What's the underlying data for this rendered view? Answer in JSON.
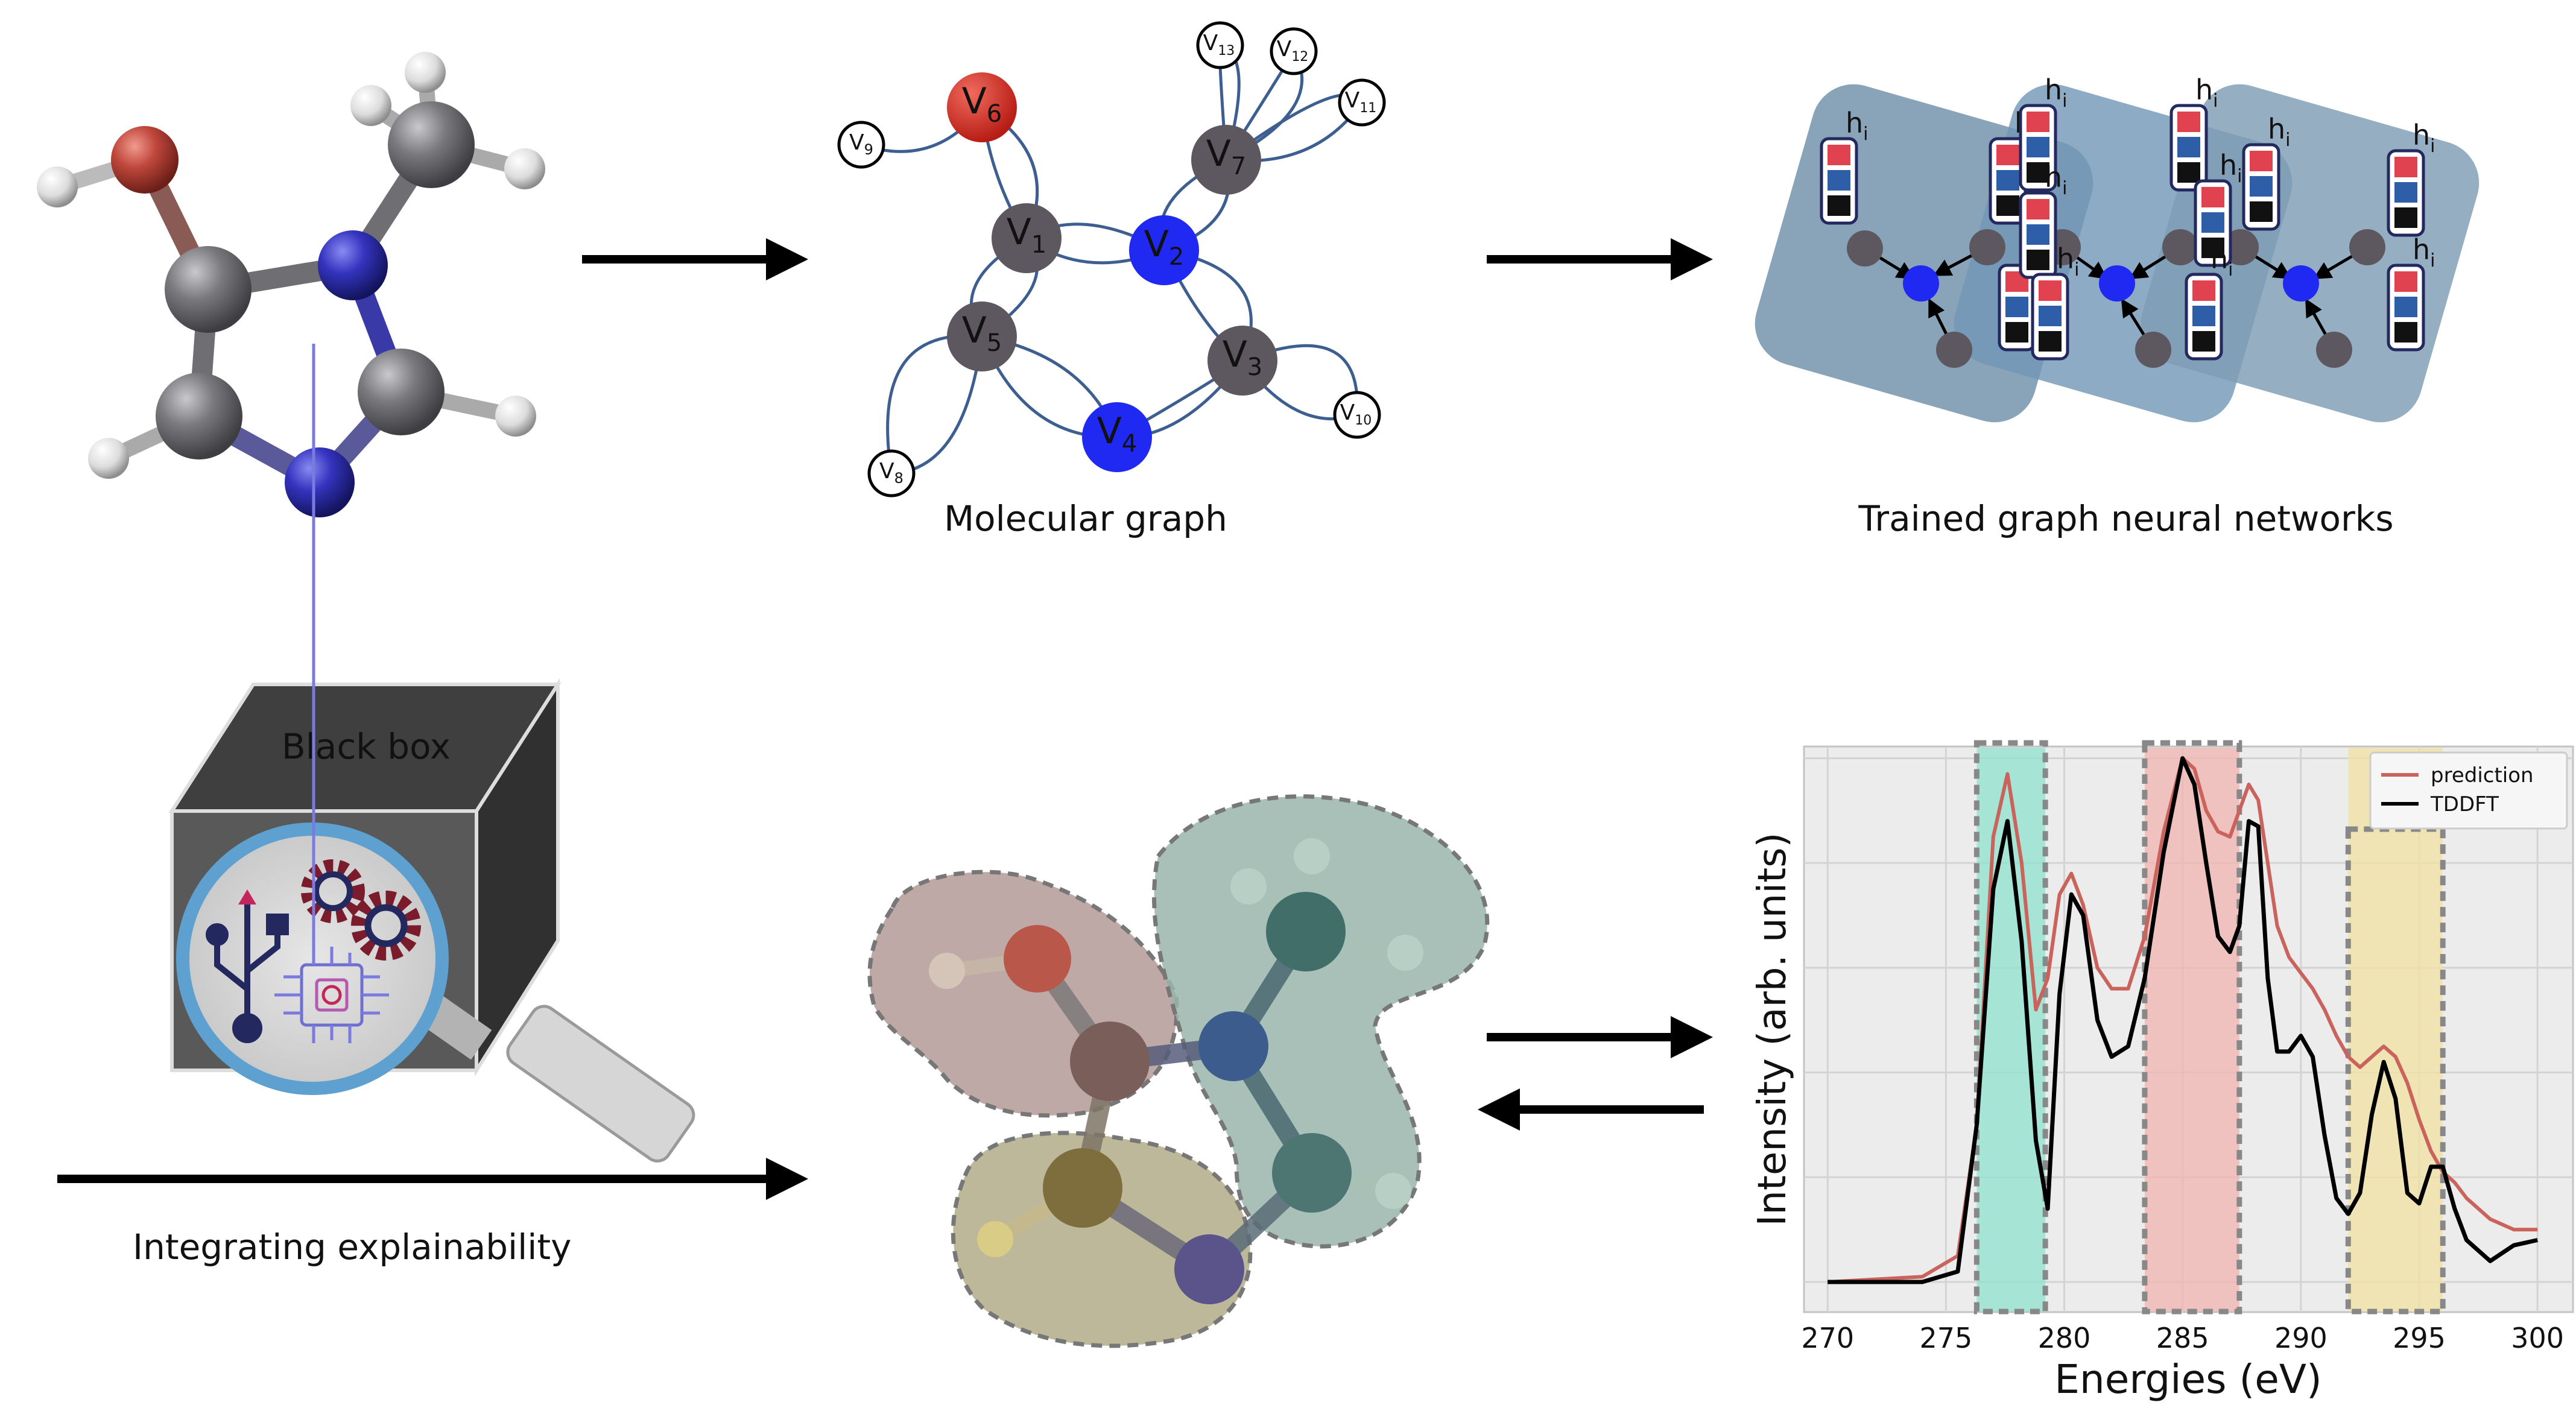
{
  "captions": {
    "molecular_graph": "Molecular graph",
    "trained_gnn": "Trained graph neural networks",
    "black_box": "Black box",
    "explainability": "Integrating explainability"
  },
  "graph_nodes": {
    "v1": {
      "letter": "V",
      "sub": "1"
    },
    "v2": {
      "letter": "V",
      "sub": "2"
    },
    "v3": {
      "letter": "V",
      "sub": "3"
    },
    "v4": {
      "letter": "V",
      "sub": "4"
    },
    "v5": {
      "letter": "V",
      "sub": "5"
    },
    "v6": {
      "letter": "V",
      "sub": "6"
    },
    "v7": {
      "letter": "V",
      "sub": "7"
    },
    "v8": {
      "letter": "V",
      "sub": "8"
    },
    "v9": {
      "letter": "V",
      "sub": "9"
    },
    "v10": {
      "letter": "V",
      "sub": "10"
    },
    "v11": {
      "letter": "V",
      "sub": "11"
    },
    "v12": {
      "letter": "V",
      "sub": "12"
    },
    "v13": {
      "letter": "V",
      "sub": "13"
    }
  },
  "gnn_label": {
    "letter": "h",
    "sub": "i"
  },
  "colors": {
    "carbon": "#6f6f73",
    "nitrogen": "#2b2bb0",
    "oxygen": "#b7443a",
    "hydrogen": "#e2e2e2",
    "node_dark": "#5d5860",
    "node_blue": "#1f29f2",
    "node_red": "#d6281e",
    "edge": "#3d5e91",
    "gnn_panel": "#7f9cb3",
    "highlight_green": "#8fe3cf",
    "highlight_red": "#f0b4b0",
    "highlight_yellow": "#f3e2a1",
    "prediction": "#c9635c",
    "tddft": "#000000"
  },
  "chart_data": {
    "type": "line",
    "xlabel": "Energies (eV)",
    "ylabel": "Intensity (arb. units)",
    "xlim": [
      269,
      301.5
    ],
    "ylim": [
      0,
      1.08
    ],
    "x_ticks": [
      "270",
      "275",
      "280",
      "285",
      "290",
      "295",
      "300"
    ],
    "grid": true,
    "legend_position": "top-right",
    "highlight_regions": [
      {
        "x0": 276.3,
        "x1": 279.2,
        "color": "#8fe3cf"
      },
      {
        "x0": 283.4,
        "x1": 287.4,
        "color": "#f0b4b0"
      },
      {
        "x0": 292.0,
        "x1": 296.0,
        "color": "#f3e2a1"
      }
    ],
    "series": [
      {
        "name": "prediction",
        "color": "#c9635c",
        "x": [
          270,
          274,
          275.5,
          276.3,
          277,
          277.6,
          278.2,
          278.8,
          279.3,
          279.8,
          280.3,
          280.8,
          281.4,
          282,
          282.7,
          283.4,
          284.2,
          285,
          285.5,
          286,
          286.5,
          287,
          287.4,
          287.8,
          288.2,
          288.6,
          289,
          289.5,
          290,
          290.5,
          291,
          291.5,
          292,
          292.5,
          293,
          293.5,
          294,
          294.5,
          295,
          295.5,
          296,
          296.5,
          297,
          298,
          299,
          300
        ],
        "y": [
          0,
          0.01,
          0.05,
          0.3,
          0.85,
          0.97,
          0.8,
          0.52,
          0.58,
          0.74,
          0.78,
          0.72,
          0.6,
          0.56,
          0.56,
          0.66,
          0.86,
          1.0,
          0.98,
          0.9,
          0.86,
          0.85,
          0.9,
          0.95,
          0.92,
          0.8,
          0.68,
          0.62,
          0.59,
          0.56,
          0.52,
          0.47,
          0.43,
          0.41,
          0.43,
          0.45,
          0.43,
          0.38,
          0.31,
          0.25,
          0.21,
          0.19,
          0.16,
          0.12,
          0.1,
          0.1
        ]
      },
      {
        "name": "TDDFT",
        "color": "#000000",
        "x": [
          270,
          274,
          275.5,
          276.3,
          277,
          277.6,
          278.2,
          278.8,
          279.3,
          279.8,
          280.3,
          280.8,
          281.4,
          282,
          282.7,
          283.4,
          284.2,
          285,
          285.5,
          286,
          286.5,
          287,
          287.4,
          287.8,
          288.2,
          288.6,
          289,
          289.5,
          290,
          290.5,
          291,
          291.5,
          292,
          292.5,
          293,
          293.5,
          294,
          294.5,
          295,
          295.5,
          296,
          296.5,
          297,
          298,
          299,
          300
        ],
        "y": [
          0,
          0.0,
          0.02,
          0.3,
          0.75,
          0.88,
          0.65,
          0.27,
          0.14,
          0.55,
          0.74,
          0.7,
          0.5,
          0.43,
          0.45,
          0.58,
          0.82,
          1.0,
          0.95,
          0.8,
          0.66,
          0.63,
          0.68,
          0.88,
          0.87,
          0.58,
          0.44,
          0.44,
          0.47,
          0.43,
          0.28,
          0.16,
          0.13,
          0.17,
          0.32,
          0.42,
          0.35,
          0.17,
          0.15,
          0.22,
          0.22,
          0.14,
          0.08,
          0.04,
          0.07,
          0.08
        ]
      }
    ]
  }
}
